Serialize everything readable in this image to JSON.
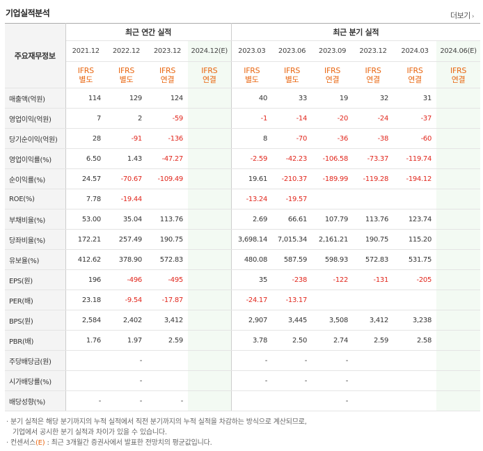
{
  "header": {
    "title": "기업실적분석",
    "more_label": "더보기"
  },
  "table": {
    "row_header_label": "주요재무정보",
    "group_annual": "최근 연간 실적",
    "group_quarterly": "최근 분기 실적",
    "columns": [
      {
        "period": "2021.12",
        "std1": "IFRS",
        "std2": "별도",
        "estimate": false
      },
      {
        "period": "2022.12",
        "std1": "IFRS",
        "std2": "별도",
        "estimate": false
      },
      {
        "period": "2023.12",
        "std1": "IFRS",
        "std2": "연결",
        "estimate": false
      },
      {
        "period": "2024.12(E)",
        "std1": "IFRS",
        "std2": "연결",
        "estimate": true
      },
      {
        "period": "2023.03",
        "std1": "IFRS",
        "std2": "별도",
        "estimate": false
      },
      {
        "period": "2023.06",
        "std1": "IFRS",
        "std2": "별도",
        "estimate": false
      },
      {
        "period": "2023.09",
        "std1": "IFRS",
        "std2": "연결",
        "estimate": false
      },
      {
        "period": "2023.12",
        "std1": "IFRS",
        "std2": "연결",
        "estimate": false
      },
      {
        "period": "2024.03",
        "std1": "IFRS",
        "std2": "연결",
        "estimate": false
      },
      {
        "period": "2024.06(E)",
        "std1": "IFRS",
        "std2": "연결",
        "estimate": true
      }
    ],
    "rows": [
      {
        "label": "매출액(억원)",
        "values": [
          "114",
          "129",
          "124",
          "",
          "40",
          "33",
          "19",
          "32",
          "31",
          ""
        ]
      },
      {
        "label": "영업이익(억원)",
        "values": [
          "7",
          "2",
          "-59",
          "",
          "-1",
          "-14",
          "-20",
          "-24",
          "-37",
          ""
        ]
      },
      {
        "label": "당기순이익(억원)",
        "values": [
          "28",
          "-91",
          "-136",
          "",
          "8",
          "-70",
          "-36",
          "-38",
          "-60",
          ""
        ]
      },
      {
        "label": "영업이익률(%)",
        "values": [
          "6.50",
          "1.43",
          "-47.27",
          "",
          "-2.59",
          "-42.23",
          "-106.58",
          "-73.37",
          "-119.74",
          ""
        ]
      },
      {
        "label": "순이익률(%)",
        "values": [
          "24.57",
          "-70.67",
          "-109.49",
          "",
          "19.61",
          "-210.37",
          "-189.99",
          "-119.28",
          "-194.12",
          ""
        ]
      },
      {
        "label": "ROE(%)",
        "values": [
          "7.78",
          "-19.44",
          "",
          "",
          "-13.24",
          "-19.57",
          "",
          "",
          "",
          ""
        ]
      },
      {
        "label": "부채비율(%)",
        "values": [
          "53.00",
          "35.04",
          "113.76",
          "",
          "2.69",
          "66.61",
          "107.79",
          "113.76",
          "123.74",
          ""
        ]
      },
      {
        "label": "당좌비율(%)",
        "values": [
          "172.21",
          "257.49",
          "190.75",
          "",
          "3,698.14",
          "7,015.34",
          "2,161.21",
          "190.75",
          "115.20",
          ""
        ]
      },
      {
        "label": "유보율(%)",
        "values": [
          "412.62",
          "378.90",
          "572.83",
          "",
          "480.08",
          "587.59",
          "598.93",
          "572.83",
          "531.75",
          ""
        ]
      },
      {
        "label": "EPS(원)",
        "values": [
          "196",
          "-496",
          "-495",
          "",
          "35",
          "-238",
          "-122",
          "-131",
          "-205",
          ""
        ]
      },
      {
        "label": "PER(배)",
        "values": [
          "23.18",
          "-9.54",
          "-17.87",
          "",
          "-24.17",
          "-13.17",
          "",
          "",
          "",
          ""
        ]
      },
      {
        "label": "BPS(원)",
        "values": [
          "2,584",
          "2,402",
          "3,412",
          "",
          "2,907",
          "3,445",
          "3,508",
          "3,412",
          "3,238",
          ""
        ]
      },
      {
        "label": "PBR(배)",
        "values": [
          "1.76",
          "1.97",
          "2.59",
          "",
          "3.78",
          "2.50",
          "2.74",
          "2.59",
          "2.58",
          ""
        ]
      },
      {
        "label": "주당배당금(원)",
        "values": [
          "",
          "-",
          "",
          "",
          "-",
          "-",
          "-",
          "",
          "",
          ""
        ]
      },
      {
        "label": "시가배당률(%)",
        "values": [
          "",
          "-",
          "",
          "",
          "-",
          "-",
          "-",
          "",
          "",
          ""
        ]
      },
      {
        "label": "배당성향(%)",
        "values": [
          "-",
          "-",
          "-",
          "",
          "",
          "",
          "-",
          "",
          "",
          ""
        ]
      }
    ],
    "section_breaks_before": [
      3,
      6,
      9,
      13
    ]
  },
  "notes": {
    "line1": "· 분기 실적은 해당 분기까지의 누적 실적에서 직전 분기까지의 누적 실적을 차감하는 방식으로 계산되므로,",
    "line2": "기업에서 공시한 분기 실적과 차이가 있을 수 있습니다.",
    "line3_prefix": "· 컨센서스",
    "line3_mark": "(E)",
    "line3_suffix": " : 최근 3개월간 증권사에서 발표한 전망치의 평균값입니다."
  },
  "colors": {
    "accent_orange": "#e8650f",
    "negative_red": "#e1261c",
    "estimate_bg": "#f3faf3",
    "label_bg": "#f4f4f4"
  }
}
